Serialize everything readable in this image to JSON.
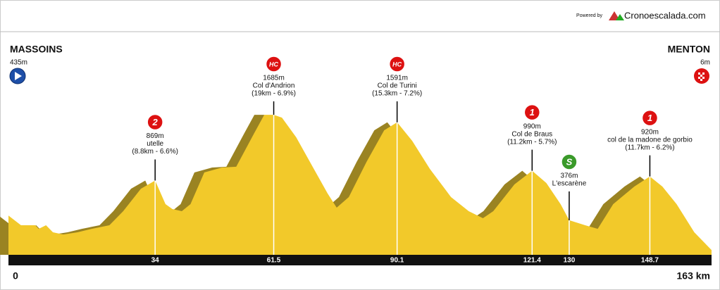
{
  "header": {
    "powered": "Powered by",
    "brand": "Cronoescalada.com"
  },
  "chart_data": {
    "type": "area",
    "color": "#f2c92a",
    "shadow_color": "#9a8322",
    "start": {
      "name": "MASSOINS",
      "altitude": {
        "value": 435,
        "label": "435m"
      }
    },
    "finish": {
      "name": "MENTON",
      "altitude": {
        "value": 6,
        "label": "6m"
      }
    },
    "xlim": [
      0,
      163
    ],
    "xticks": [
      0,
      {
        "value": 163,
        "label": "163 km"
      }
    ],
    "x": [
      0,
      2.9,
      6.2,
      7,
      8.7,
      10.3,
      12.7,
      16,
      19.3,
      23.4,
      26.6,
      30.7,
      34,
      36.4,
      38,
      40.2,
      42.2,
      45.4,
      49.5,
      52.8,
      56.9,
      59.3,
      61.5,
      63.4,
      66.7,
      70.8,
      74,
      76.1,
      78.9,
      83,
      87.1,
      90.1,
      93.6,
      97.7,
      102.6,
      106.7,
      110,
      112.4,
      117.3,
      121.4,
      124.7,
      128,
      130,
      133.7,
      136.6,
      140.2,
      145.1,
      148.7,
      151.6,
      154.9,
      159,
      163
    ],
    "values": [
      435,
      314,
      314,
      270,
      314,
      227,
      200,
      227,
      270,
      314,
      489,
      768,
      869,
      576,
      515,
      489,
      576,
      969,
      1031,
      1040,
      1450,
      1685,
      1685,
      1650,
      1406,
      1013,
      707,
      533,
      664,
      1100,
      1493,
      1591,
      1362,
      1013,
      664,
      489,
      402,
      489,
      821,
      990,
      838,
      576,
      376,
      314,
      270,
      576,
      795,
      920,
      795,
      576,
      227,
      6
    ],
    "climbs": [
      {
        "km": 34,
        "category": "2",
        "altitude": {
          "value": 869,
          "label": "869m"
        },
        "name": "utelle",
        "detail": "(8.8km - 6.6%)"
      },
      {
        "km": 61.5,
        "category": "HC",
        "altitude": {
          "value": 1685,
          "label": "1685m"
        },
        "name": "Col d'Andrion",
        "detail": "(19km - 6.9%)"
      },
      {
        "km": 90.1,
        "category": "HC",
        "altitude": {
          "value": 1591,
          "label": "1591m"
        },
        "name": "Col de Turini",
        "detail": "(15.3km - 7.2%)"
      },
      {
        "km": 121.4,
        "category": "1",
        "altitude": {
          "value": 990,
          "label": "990m"
        },
        "name": "Col de Braus",
        "detail": "(11.2km - 5.7%)"
      },
      {
        "km": 130,
        "category": "S",
        "altitude": {
          "value": 376,
          "label": "376m"
        },
        "name": "L'escarène"
      },
      {
        "km": 148.7,
        "category": "1",
        "altitude": {
          "value": 920,
          "label": "920m"
        },
        "name": "col de la madone de gorbio",
        "detail": "(11.7km - 6.2%)"
      }
    ]
  }
}
